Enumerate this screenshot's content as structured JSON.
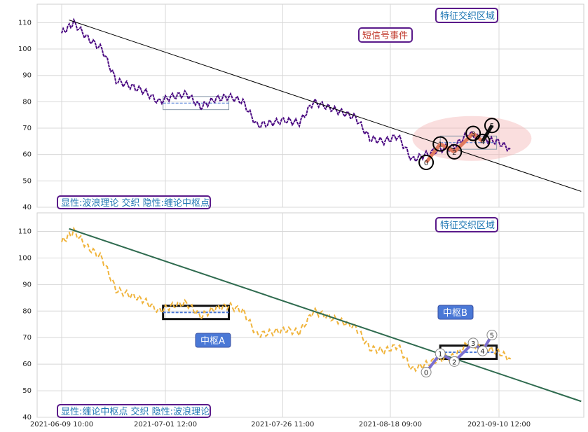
{
  "panels": [
    {
      "id": "top",
      "ylim": [
        40,
        117
      ],
      "yticks": [
        40,
        50,
        60,
        70,
        80,
        90,
        100,
        110
      ],
      "legend_text": "显性:波浪理论 交织 隐性:缠论中枢点",
      "callout_feature": "特征交织区域",
      "callout_short_signal": "短信号事件"
    },
    {
      "id": "bottom",
      "ylim": [
        40,
        117
      ],
      "yticks": [
        40,
        50,
        60,
        70,
        80,
        90,
        100,
        110
      ],
      "legend_text": "显性:缠论中枢点 交织 隐性:波浪理论",
      "callout_feature": "特征交织区域",
      "zone_a_label": "中枢A",
      "zone_b_label": "中枢B"
    }
  ],
  "xticks": [
    "2021-06-09 10:00",
    "2021-07-01 12:00",
    "2021-07-26 11:00",
    "2021-08-18 09:00",
    "2021-09-10 12:00"
  ],
  "wave_labels": [
    "0",
    "1",
    "2",
    "3",
    "4",
    "5"
  ],
  "colors": {
    "top_price": "#4b0a82",
    "bottom_price": "#f0b43c",
    "trend": "#000000",
    "box_border": "#5a1a8a",
    "box_text": "#1f77b4",
    "red_text": "#c0392b",
    "zone_fill": "#4a78d6",
    "ellipse": "#f4b6b6"
  },
  "chart_data": {
    "type": "line",
    "x": [
      "2021-06-09 10:00",
      "2021-06-12",
      "2021-06-15",
      "2021-06-18",
      "2021-06-21",
      "2021-06-24",
      "2021-06-27",
      "2021-06-30",
      "2021-07-03",
      "2021-07-06",
      "2021-07-09",
      "2021-07-12",
      "2021-07-15",
      "2021-07-18",
      "2021-07-21",
      "2021-07-24",
      "2021-07-27",
      "2021-07-30",
      "2021-08-02",
      "2021-08-05",
      "2021-08-08",
      "2021-08-11",
      "2021-08-14",
      "2021-08-17",
      "2021-08-20",
      "2021-08-23",
      "2021-08-26",
      "2021-08-29",
      "2021-09-01",
      "2021-09-04",
      "2021-09-07",
      "2021-09-10",
      "2021-09-13"
    ],
    "series": [
      {
        "values": [
          106,
          110,
          104,
          100,
          88,
          86,
          84,
          80,
          82,
          83,
          78,
          81,
          82,
          80,
          71,
          72,
          73,
          72,
          80,
          78,
          76,
          74,
          66,
          65,
          67,
          58,
          60,
          62,
          63,
          68,
          66,
          65,
          62
        ]
      }
    ],
    "trendline": {
      "x": [
        "2021-06-11",
        "2021-09-28"
      ],
      "y": [
        111,
        46
      ]
    },
    "wave_points": [
      {
        "label": "0",
        "x": "2021-08-26",
        "y": 57
      },
      {
        "label": "1",
        "x": "2021-08-29",
        "y": 64
      },
      {
        "label": "2",
        "x": "2021-09-01",
        "y": 61
      },
      {
        "label": "3",
        "x": "2021-09-05",
        "y": 68
      },
      {
        "label": "4",
        "x": "2021-09-07",
        "y": 65
      },
      {
        "label": "5",
        "x": "2021-09-09",
        "y": 71
      }
    ],
    "zones": [
      {
        "name": "中枢A",
        "x": [
          "2021-07-01",
          "2021-07-15"
        ],
        "y": [
          77,
          82
        ]
      },
      {
        "name": "中枢B",
        "x": [
          "2021-08-29",
          "2021-09-10"
        ],
        "y": [
          62,
          67
        ]
      }
    ],
    "ylim": [
      40,
      117
    ],
    "grid": true
  }
}
